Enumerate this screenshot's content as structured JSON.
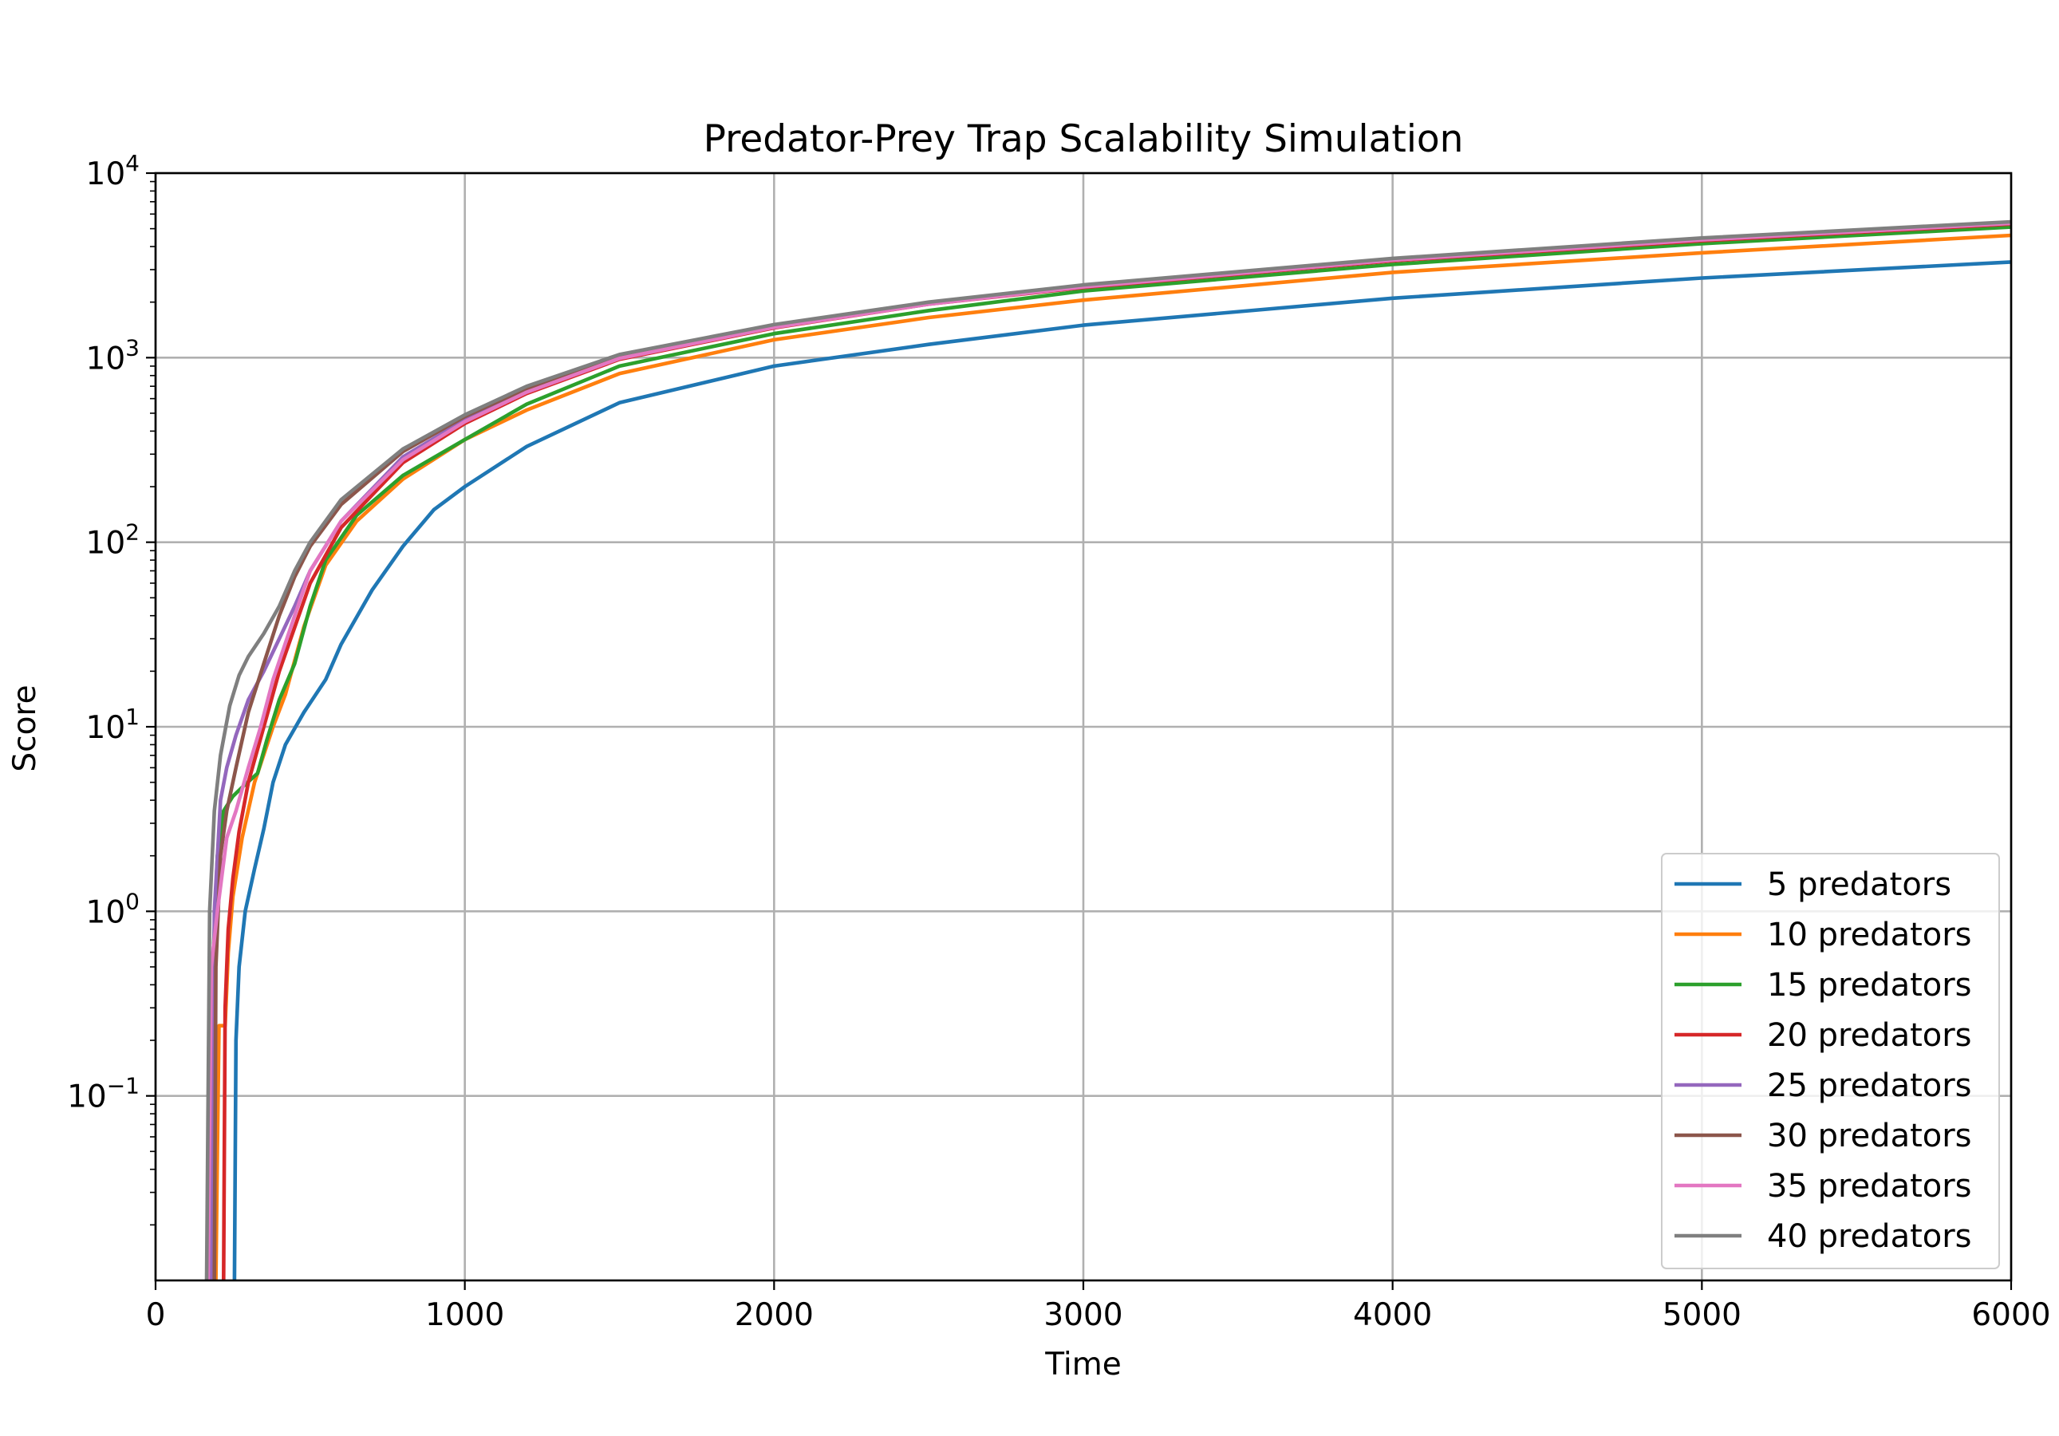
{
  "chart_data": {
    "type": "line",
    "title": "Predator-Prey Trap Scalability Simulation",
    "xlabel": "Time",
    "ylabel": "Score",
    "xlim": [
      0,
      6000
    ],
    "ylim": [
      0.01,
      10000
    ],
    "yscale": "log",
    "grid": true,
    "legend_position": "bottom-right",
    "x_ticks": [
      0,
      1000,
      2000,
      3000,
      4000,
      5000,
      6000
    ],
    "x_tick_labels": [
      "0",
      "1000",
      "2000",
      "3000",
      "4000",
      "5000",
      "6000"
    ],
    "y_ticks": [
      0.1,
      1,
      10,
      100,
      1000,
      10000
    ],
    "y_tick_base": "10",
    "y_tick_exponents": [
      "−1",
      "0",
      "1",
      "2",
      "3",
      "4"
    ],
    "series": [
      {
        "name": "5 predators",
        "color": "#1f77b4",
        "x": [
          255,
          260,
          270,
          290,
          320,
          350,
          380,
          420,
          480,
          550,
          600,
          700,
          800,
          900,
          1000,
          1200,
          1500,
          2000,
          2500,
          3000,
          4000,
          5000,
          6000
        ],
        "y": [
          0.01,
          0.2,
          0.5,
          1.0,
          1.7,
          2.8,
          5.0,
          8.0,
          12,
          18,
          28,
          55,
          95,
          150,
          200,
          330,
          570,
          900,
          1180,
          1500,
          2100,
          2700,
          3300
        ]
      },
      {
        "name": "10 predators",
        "color": "#ff7f0e",
        "x": [
          195,
          200,
          205,
          215,
          225,
          235,
          250,
          280,
          320,
          380,
          420,
          480,
          550,
          650,
          800,
          1000,
          1200,
          1500,
          2000,
          2500,
          3000,
          4000,
          5000,
          6000
        ],
        "y": [
          0.01,
          0.05,
          0.24,
          0.24,
          0.24,
          0.6,
          1.2,
          2.5,
          5.0,
          10,
          15,
          35,
          75,
          130,
          220,
          360,
          520,
          820,
          1250,
          1650,
          2050,
          2900,
          3700,
          4600
        ]
      },
      {
        "name": "15 predators",
        "color": "#2ca02c",
        "x": [
          175,
          185,
          200,
          220,
          250,
          280,
          330,
          360,
          400,
          450,
          500,
          550,
          650,
          800,
          1000,
          1200,
          1500,
          2000,
          2500,
          3000,
          4000,
          5000,
          6000
        ],
        "y": [
          0.01,
          0.5,
          2.0,
          3.5,
          4.2,
          4.7,
          5.6,
          8.5,
          14,
          22,
          45,
          80,
          140,
          230,
          360,
          560,
          900,
          1350,
          1800,
          2300,
          3200,
          4150,
          5100
        ]
      },
      {
        "name": "20 predators",
        "color": "#d62728",
        "x": [
          220,
          225,
          235,
          250,
          270,
          300,
          350,
          400,
          500,
          600,
          800,
          1000,
          1200,
          1500,
          2000,
          2500,
          3000,
          4000,
          5000,
          6000
        ],
        "y": [
          0.01,
          0.3,
          0.8,
          1.5,
          2.7,
          5.0,
          10,
          20,
          60,
          120,
          270,
          440,
          640,
          980,
          1450,
          1950,
          2400,
          3350,
          4300,
          5300
        ]
      },
      {
        "name": "25 predators",
        "color": "#9467bd",
        "x": [
          180,
          190,
          210,
          230,
          260,
          300,
          350,
          400,
          450,
          500,
          600,
          800,
          1000,
          1200,
          1500,
          2000,
          2500,
          3000,
          4000,
          5000,
          6000
        ],
        "y": [
          0.01,
          1.0,
          4.0,
          6.0,
          9.0,
          14,
          20,
          30,
          45,
          70,
          130,
          290,
          460,
          660,
          1000,
          1470,
          1960,
          2420,
          3380,
          4350,
          5350
        ]
      },
      {
        "name": "30 predators",
        "color": "#8c564b",
        "x": [
          190,
          195,
          210,
          230,
          260,
          300,
          350,
          400,
          450,
          500,
          600,
          800,
          1000,
          1200,
          1500,
          2000,
          2500,
          3000,
          4000,
          5000,
          6000
        ],
        "y": [
          0.01,
          0.5,
          2.0,
          3.5,
          6.0,
          12,
          22,
          40,
          65,
          95,
          160,
          310,
          480,
          680,
          1020,
          1490,
          1980,
          2450,
          3400,
          4400,
          5400
        ]
      },
      {
        "name": "35 predators",
        "color": "#e377c2",
        "x": [
          170,
          180,
          200,
          230,
          260,
          300,
          340,
          380,
          450,
          500,
          600,
          800,
          1000,
          1200,
          1500,
          2000,
          2500,
          3000,
          4000,
          5000,
          6000
        ],
        "y": [
          0.01,
          0.5,
          1.0,
          2.5,
          3.5,
          6.0,
          10,
          18,
          40,
          70,
          130,
          280,
          450,
          650,
          990,
          1460,
          1950,
          2420,
          3380,
          4350,
          5350
        ]
      },
      {
        "name": "40 predators",
        "color": "#7f7f7f",
        "x": [
          165,
          175,
          190,
          210,
          240,
          270,
          300,
          350,
          400,
          450,
          500,
          600,
          800,
          1000,
          1200,
          1500,
          2000,
          2500,
          3000,
          4000,
          5000,
          6000
        ],
        "y": [
          0.01,
          1.0,
          3.5,
          7.0,
          13,
          19,
          24,
          32,
          45,
          70,
          100,
          170,
          320,
          490,
          700,
          1040,
          1510,
          2000,
          2480,
          3450,
          4450,
          5450
        ]
      }
    ]
  }
}
